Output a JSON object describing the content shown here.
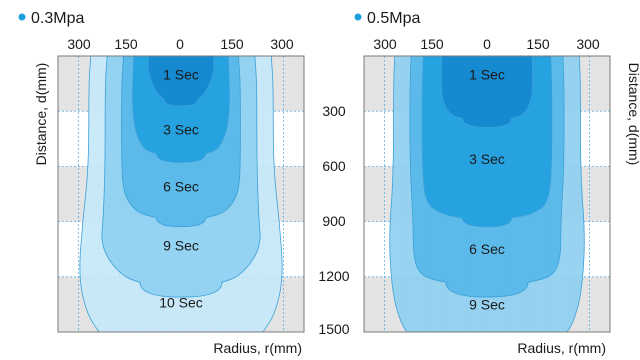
{
  "chart_data": [
    {
      "type": "area",
      "legend": "0.3Mpa",
      "legend_color": "#1ea0e0",
      "x_ticks": [
        "300",
        "150",
        "0",
        "150",
        "300"
      ],
      "xlabel": "Radius, r(mm)",
      "ylabel": "Distance, d(mm)",
      "xlim": [
        -300,
        300
      ],
      "ylim": [
        0,
        1500
      ],
      "zones": [
        {
          "label": "10 Sec",
          "half_widths": [
            [
              0,
              220
            ],
            [
              150,
              225
            ],
            [
              600,
              225
            ],
            [
              900,
              240
            ],
            [
              1200,
              250
            ],
            [
              1400,
              230
            ],
            [
              1500,
              200
            ]
          ]
        },
        {
          "label": "9 Sec",
          "half_widths": [
            [
              0,
              180
            ],
            [
              150,
              185
            ],
            [
              600,
              185
            ],
            [
              900,
              190
            ],
            [
              1000,
              195
            ],
            [
              1100,
              180
            ],
            [
              1200,
              140
            ],
            [
              1230,
              100
            ]
          ]
        },
        {
          "label": "6 Sec",
          "half_widths": [
            [
              0,
              140
            ],
            [
              150,
              145
            ],
            [
              600,
              145
            ],
            [
              750,
              140
            ],
            [
              850,
              110
            ],
            [
              880,
              60
            ]
          ]
        },
        {
          "label": "3 Sec",
          "half_widths": [
            [
              0,
              115
            ],
            [
              150,
              118
            ],
            [
              300,
              118
            ],
            [
              420,
              110
            ],
            [
              510,
              90
            ],
            [
              530,
              60
            ]
          ]
        },
        {
          "label": "1 Sec",
          "half_widths": [
            [
              0,
              80
            ],
            [
              100,
              80
            ],
            [
              200,
              60
            ],
            [
              240,
              40
            ]
          ]
        }
      ],
      "zone_labels": [
        {
          "text": "1 Sec",
          "y": 100
        },
        {
          "text": "3 Sec",
          "y": 400
        },
        {
          "text": "6 Sec",
          "y": 710
        },
        {
          "text": "9 Sec",
          "y": 1030
        },
        {
          "text": "10 Sec",
          "y": 1340
        }
      ]
    },
    {
      "type": "area",
      "legend": "0.5Mpa",
      "legend_color": "#1ea0e0",
      "x_ticks": [
        "300",
        "150",
        "0",
        "150",
        "300"
      ],
      "xlabel": "Radius, r(mm)",
      "ylabel": "Distance, d(mm)",
      "xlim": [
        -300,
        300
      ],
      "ylim": [
        0,
        1500
      ],
      "zones": [
        {
          "label": "9 Sec",
          "half_widths": [
            [
              0,
              225
            ],
            [
              150,
              228
            ],
            [
              650,
              228
            ],
            [
              1000,
              240
            ],
            [
              1300,
              230
            ],
            [
              1450,
              210
            ],
            [
              1500,
              195
            ]
          ]
        },
        {
          "label": "6 Sec",
          "half_widths": [
            [
              0,
              185
            ],
            [
              150,
              188
            ],
            [
              600,
              188
            ],
            [
              900,
              180
            ],
            [
              1100,
              180
            ],
            [
              1200,
              160
            ],
            [
              1230,
              100
            ]
          ]
        },
        {
          "label": "3 Sec",
          "half_widths": [
            [
              0,
              155
            ],
            [
              150,
              158
            ],
            [
              300,
              158
            ],
            [
              600,
              158
            ],
            [
              800,
              150
            ],
            [
              860,
              110
            ],
            [
              880,
              60
            ]
          ]
        },
        {
          "label": "1 Sec",
          "half_widths": [
            [
              0,
              110
            ],
            [
              150,
              112
            ],
            [
              250,
              108
            ],
            [
              320,
              90
            ],
            [
              340,
              60
            ]
          ]
        }
      ],
      "zone_labels": [
        {
          "text": "1 Sec",
          "y": 100
        },
        {
          "text": "3 Sec",
          "y": 560
        },
        {
          "text": "6 Sec",
          "y": 1050
        },
        {
          "text": "9 Sec",
          "y": 1350
        }
      ]
    }
  ],
  "y_axis": {
    "ticks": [
      "300",
      "600",
      "900",
      "1200",
      "1500"
    ],
    "values": [
      300,
      600,
      900,
      1200,
      1500
    ]
  },
  "colors": {
    "zone_fills": [
      "#c6e7f8",
      "#8fd0f1",
      "#56b7e8",
      "#239fde",
      "#1388cf"
    ],
    "zone_stroke": "#3aa0d8",
    "band_shaded": "#e3e3e3",
    "grid_line": "#4aa6dc",
    "frame": "#7a7a7a"
  }
}
